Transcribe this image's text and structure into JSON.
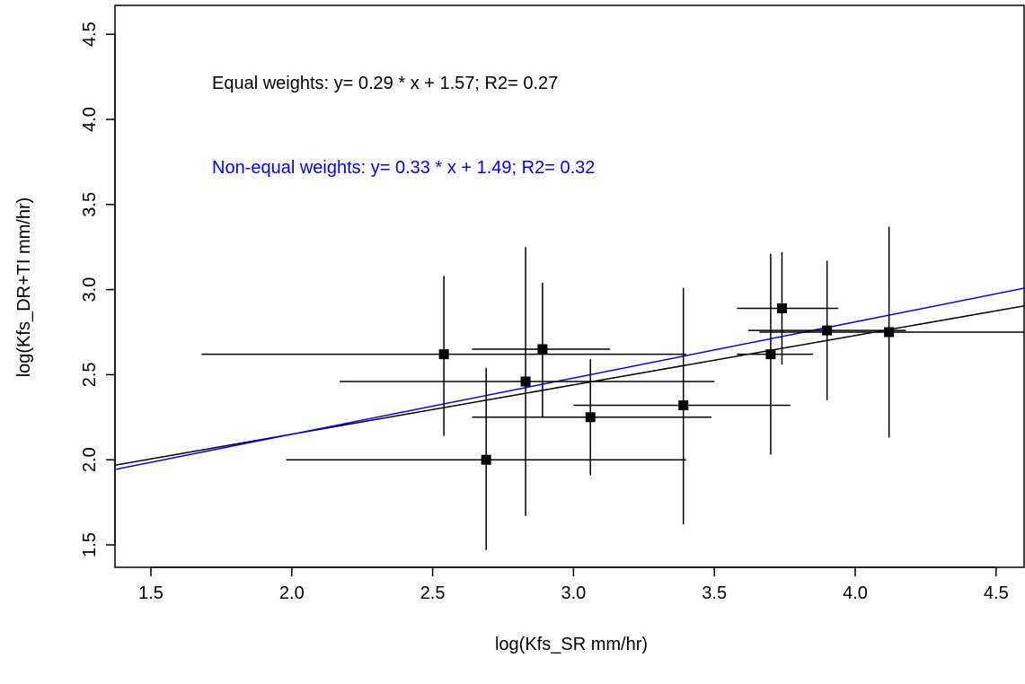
{
  "chart_data": {
    "type": "scatter",
    "title": "",
    "xlabel": "log(Kfs_SR mm/hr)",
    "ylabel": "log(Kfs_DR+TI mm/hr)",
    "xlim": [
      1.38,
      4.6
    ],
    "ylim": [
      1.4,
      4.6
    ],
    "x_ticks": [
      "1.5",
      "2.0",
      "2.5",
      "3.0",
      "3.5",
      "4.0",
      "4.5"
    ],
    "y_ticks": [
      "1.5",
      "2.0",
      "2.5",
      "3.0",
      "3.5",
      "4.0",
      "4.5"
    ],
    "grid": false,
    "legend": "none",
    "points": [
      {
        "x": 2.54,
        "y": 2.62,
        "x_err": [
          1.68,
          3.4
        ],
        "y_err": [
          2.14,
          3.08
        ]
      },
      {
        "x": 2.69,
        "y": 2.0,
        "x_err": [
          1.98,
          3.4
        ],
        "y_err": [
          1.47,
          2.54
        ]
      },
      {
        "x": 2.83,
        "y": 2.46,
        "x_err": [
          2.17,
          3.5
        ],
        "y_err": [
          1.67,
          3.25
        ]
      },
      {
        "x": 2.89,
        "y": 2.65,
        "x_err": [
          2.64,
          3.13
        ],
        "y_err": [
          2.25,
          3.04
        ]
      },
      {
        "x": 3.06,
        "y": 2.25,
        "x_err": [
          2.64,
          3.49
        ],
        "y_err": [
          1.91,
          2.59
        ]
      },
      {
        "x": 3.39,
        "y": 2.32,
        "x_err": [
          3.0,
          3.77
        ],
        "y_err": [
          1.62,
          3.01
        ]
      },
      {
        "x": 3.7,
        "y": 2.62,
        "x_err": [
          3.58,
          3.85
        ],
        "y_err": [
          2.03,
          3.21
        ]
      },
      {
        "x": 3.74,
        "y": 2.89,
        "x_err": [
          3.58,
          3.94
        ],
        "y_err": [
          2.56,
          3.22
        ]
      },
      {
        "x": 3.9,
        "y": 2.76,
        "x_err": [
          3.62,
          4.18
        ],
        "y_err": [
          2.35,
          3.17
        ]
      },
      {
        "x": 4.12,
        "y": 2.75,
        "x_err": [
          3.66,
          4.6
        ],
        "y_err": [
          2.13,
          3.37
        ]
      }
    ],
    "fits": [
      {
        "slope": 0.29,
        "intercept": 1.57,
        "color": "#000000",
        "label": "Equal weights: y= 0.29 * x + 1.57; R2= 0.27"
      },
      {
        "slope": 0.33,
        "intercept": 1.49,
        "color": "#0000ff",
        "label": "Non-equal weights: y= 0.33 * x + 1.49; R2= 0.32"
      }
    ]
  }
}
